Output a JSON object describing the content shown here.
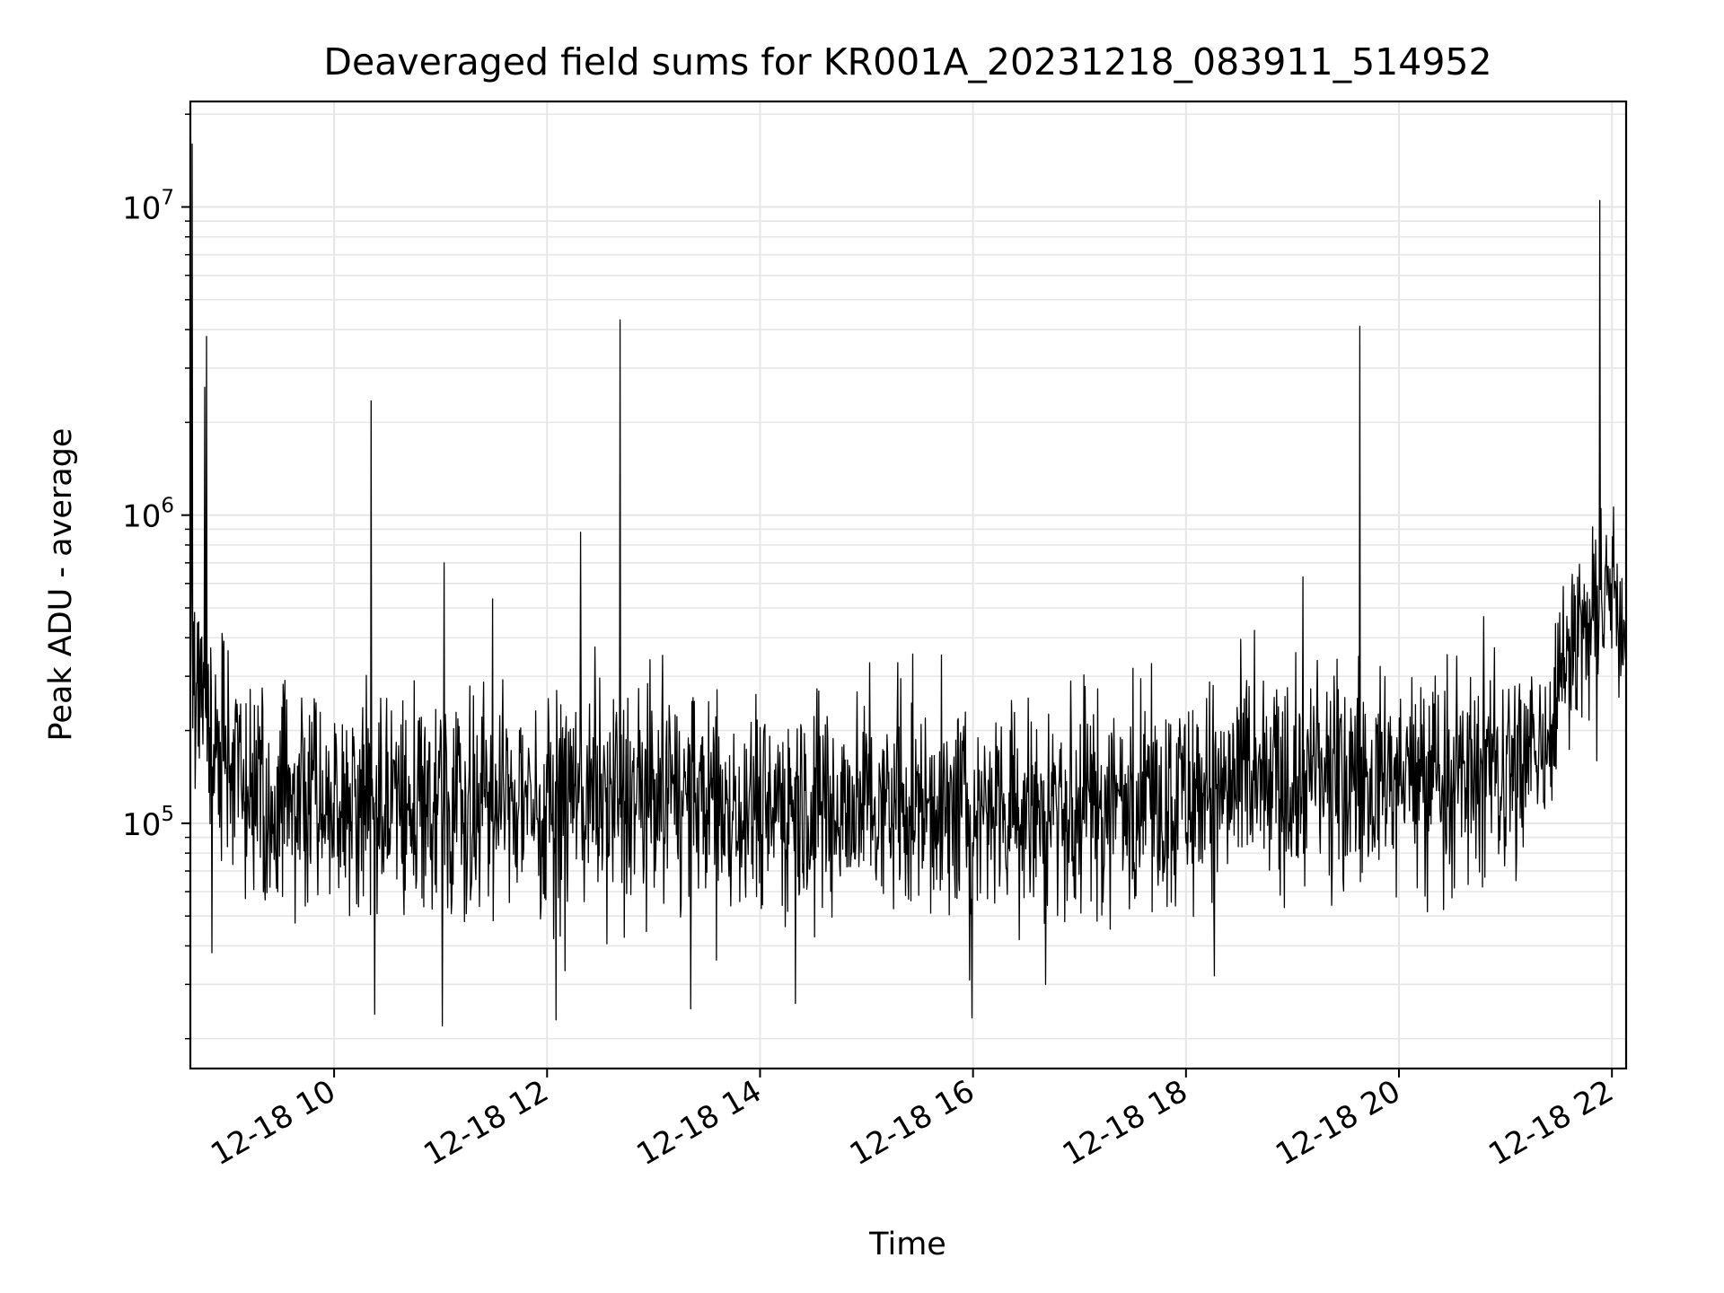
{
  "chart_data": {
    "type": "line",
    "title": "Deaveraged field sums for KR001A_20231218_083911_514952",
    "xlabel": "Time",
    "ylabel": "Peak ADU - average",
    "x_range": [
      "2023-12-18 08:39",
      "2023-12-18 22:08"
    ],
    "y_scale": "log",
    "ylim": [
      16000,
      22000000
    ],
    "grid": true,
    "line_color": "#000000",
    "x_ticks": [
      {
        "value": "2023-12-18 10:00",
        "label": "12-18 10"
      },
      {
        "value": "2023-12-18 12:00",
        "label": "12-18 12"
      },
      {
        "value": "2023-12-18 14:00",
        "label": "12-18 14"
      },
      {
        "value": "2023-12-18 16:00",
        "label": "12-18 16"
      },
      {
        "value": "2023-12-18 18:00",
        "label": "12-18 18"
      },
      {
        "value": "2023-12-18 20:00",
        "label": "12-18 20"
      },
      {
        "value": "2023-12-18 22:00",
        "label": "12-18 22"
      }
    ],
    "y_ticks": [
      {
        "value": 100000,
        "base": "10",
        "exp": "5"
      },
      {
        "value": 1000000,
        "base": "10",
        "exp": "6"
      },
      {
        "value": 10000000,
        "base": "10",
        "exp": "7"
      }
    ],
    "series": [
      {
        "baseline": [
          [
            "2023-12-18 08:40",
            300000
          ],
          [
            "2023-12-18 08:50",
            190000
          ],
          [
            "2023-12-18 09:15",
            120000
          ],
          [
            "2023-12-18 10:00",
            110000
          ],
          [
            "2023-12-18 11:00",
            115000
          ],
          [
            "2023-12-18 12:00",
            120000
          ],
          [
            "2023-12-18 13:00",
            125000
          ],
          [
            "2023-12-18 14:00",
            120000
          ],
          [
            "2023-12-18 15:00",
            115000
          ],
          [
            "2023-12-18 16:00",
            112000
          ],
          [
            "2023-12-18 17:00",
            115000
          ],
          [
            "2023-12-18 18:00",
            125000
          ],
          [
            "2023-12-18 19:00",
            135000
          ],
          [
            "2023-12-18 20:00",
            140000
          ],
          [
            "2023-12-18 21:00",
            150000
          ],
          [
            "2023-12-18 21:20",
            170000
          ],
          [
            "2023-12-18 21:30",
            300000
          ],
          [
            "2023-12-18 21:45",
            450000
          ],
          [
            "2023-12-18 22:00",
            550000
          ],
          [
            "2023-12-18 22:08",
            450000
          ]
        ],
        "spikes": [
          [
            "2023-12-18 08:40",
            16000000
          ],
          [
            "2023-12-18 08:48",
            3800000
          ],
          [
            "2023-12-18 08:47",
            2600000
          ],
          [
            "2023-12-18 10:21",
            2350000
          ],
          [
            "2023-12-18 11:02",
            700000
          ],
          [
            "2023-12-18 12:19",
            880000
          ],
          [
            "2023-12-18 12:41",
            4300000
          ],
          [
            "2023-12-18 19:06",
            630000
          ],
          [
            "2023-12-18 19:38",
            4100000
          ],
          [
            "2023-12-18 21:53",
            10500000
          ],
          [
            "2023-12-18 21:54",
            1050000
          ]
        ],
        "dips": [
          [
            "2023-12-18 08:51",
            38000
          ],
          [
            "2023-12-18 10:23",
            24000
          ],
          [
            "2023-12-18 11:01",
            22000
          ],
          [
            "2023-12-18 12:05",
            23000
          ],
          [
            "2023-12-18 13:21",
            25000
          ],
          [
            "2023-12-18 14:20",
            26000
          ],
          [
            "2023-12-18 15:58",
            31000
          ],
          [
            "2023-12-18 16:41",
            30000
          ],
          [
            "2023-12-18 18:16",
            32000
          ]
        ]
      }
    ]
  }
}
